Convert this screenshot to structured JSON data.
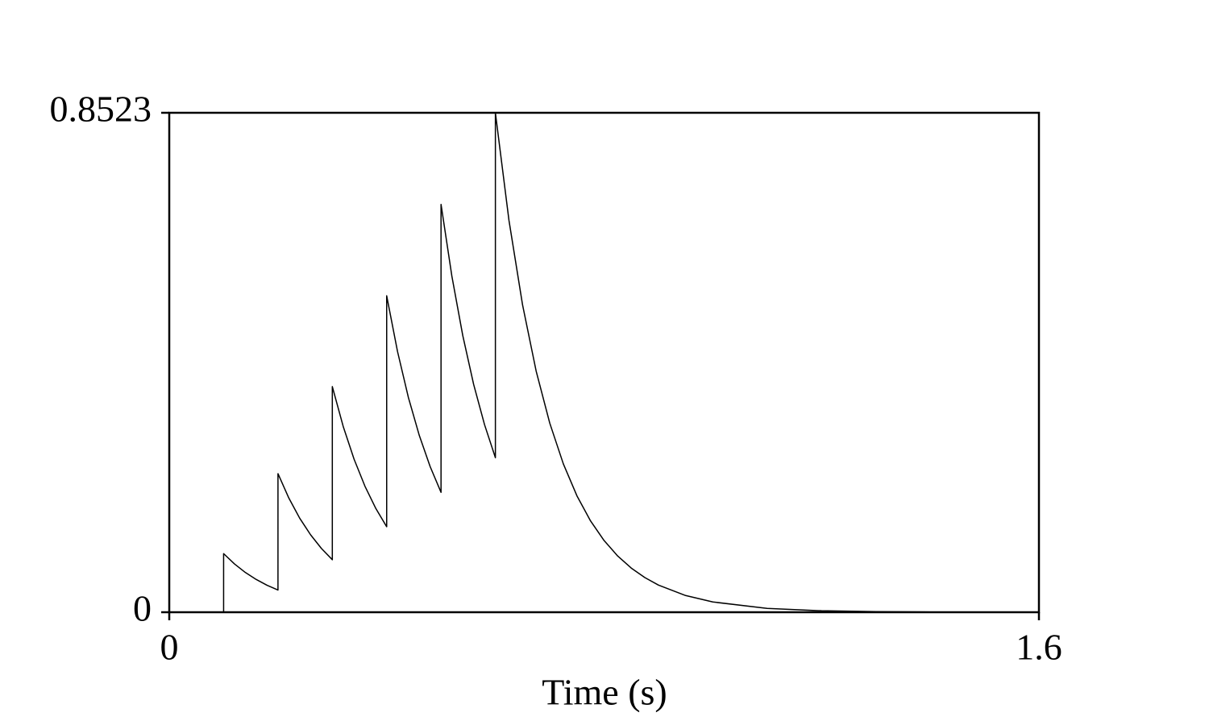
{
  "chart_data": {
    "type": "line",
    "x_label": "Time (s)",
    "x": [
      0.1,
      0.1,
      0.12,
      0.14,
      0.16,
      0.18,
      0.2,
      0.2,
      0.22,
      0.24,
      0.26,
      0.28,
      0.3,
      0.3,
      0.32,
      0.34,
      0.36,
      0.38,
      0.4,
      0.4,
      0.42,
      0.44,
      0.46,
      0.48,
      0.5,
      0.5,
      0.52,
      0.54,
      0.56,
      0.58,
      0.6,
      0.6,
      0.625,
      0.65,
      0.675,
      0.7,
      0.725,
      0.75,
      0.775,
      0.8,
      0.825,
      0.85,
      0.875,
      0.9,
      0.95,
      1.0,
      1.1,
      1.2,
      1.3,
      1.4,
      1.6
    ],
    "values": [
      0,
      0.1,
      0.0824,
      0.0678,
      0.0559,
      0.046,
      0.0379,
      0.2365,
      0.1948,
      0.1604,
      0.1321,
      0.1088,
      0.0896,
      0.385,
      0.3171,
      0.2612,
      0.2151,
      0.1771,
      0.1459,
      0.54,
      0.4447,
      0.3663,
      0.3017,
      0.2485,
      0.2046,
      0.696,
      0.5732,
      0.4721,
      0.3888,
      0.3202,
      0.2637,
      0.8523,
      0.6686,
      0.5245,
      0.4115,
      0.3228,
      0.2532,
      0.1987,
      0.1559,
      0.1223,
      0.0959,
      0.0753,
      0.0591,
      0.0463,
      0.0285,
      0.0175,
      0.0066,
      0.0025,
      0.001,
      0.0004,
      0.0001
    ],
    "color": "#000000",
    "xlim": [
      0,
      1.6
    ],
    "xticks": [
      0,
      1.6
    ],
    "ylim": [
      0,
      0.8523
    ],
    "yticks": [
      0,
      0.8523
    ],
    "grid": false
  }
}
